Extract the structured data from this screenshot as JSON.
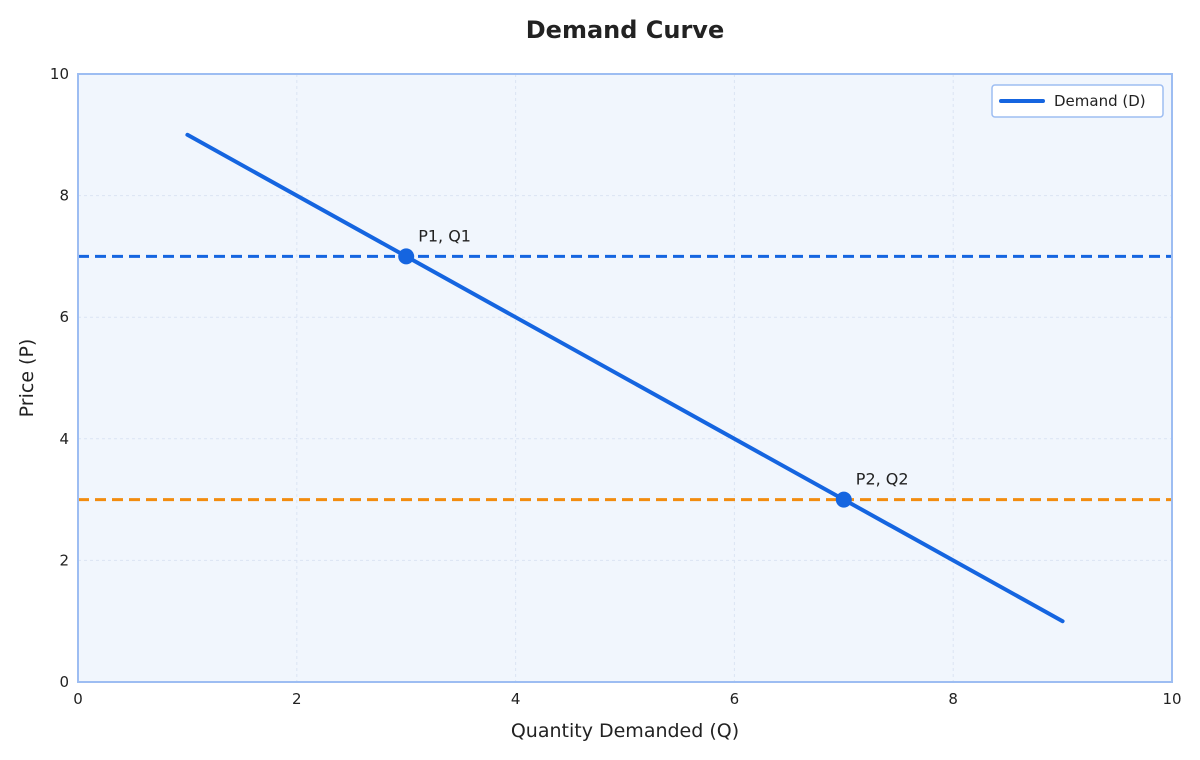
{
  "chart_data": {
    "type": "line",
    "title": "Demand Curve",
    "xlabel": "Quantity Demanded (Q)",
    "ylabel": "Price (P)",
    "xlim": [
      0,
      10
    ],
    "ylim": [
      0,
      10
    ],
    "xticks": [
      0,
      2,
      4,
      6,
      8,
      10
    ],
    "yticks": [
      0,
      2,
      4,
      6,
      8,
      10
    ],
    "grid": true,
    "legend_position": "top-right",
    "series": [
      {
        "name": "Demand (D)",
        "color": "#1565e0",
        "points": [
          {
            "x": 1,
            "y": 9
          },
          {
            "x": 9,
            "y": 1
          }
        ]
      }
    ],
    "reference_lines": [
      {
        "orientation": "horizontal",
        "y": 7,
        "color": "#1565e0",
        "style": "dashed"
      },
      {
        "orientation": "horizontal",
        "y": 3,
        "color": "#f28c0f",
        "style": "dashed"
      }
    ],
    "points": [
      {
        "label": "P1, Q1",
        "x": 3,
        "y": 7,
        "color": "#1565e0"
      },
      {
        "label": "P2, Q2",
        "x": 7,
        "y": 3,
        "color": "#1565e0"
      }
    ],
    "colors": {
      "plot_background": "#f1f6fd",
      "frame": "#9dbdf2",
      "grid": "#dbe4f3"
    }
  }
}
